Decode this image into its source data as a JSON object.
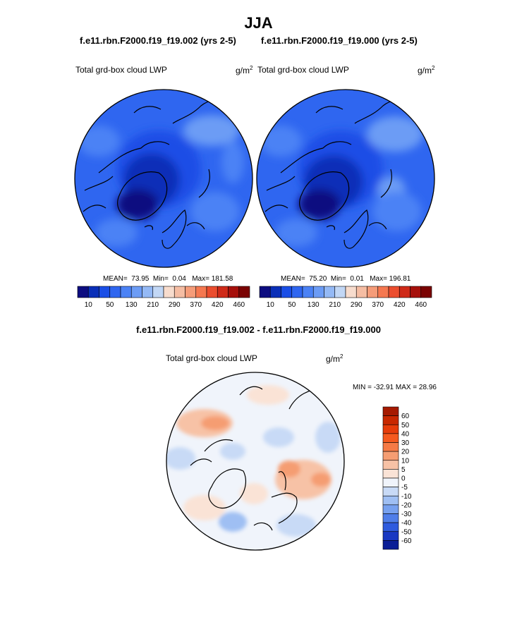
{
  "figure": {
    "title": "JJA",
    "left_case": "f.e11.rbn.F2000.f19_f19.002 (yrs 2-5)",
    "right_case": "f.e11.rbn.F2000.f19_f19.000 (yrs 2-5)",
    "diff_title": "f.e11.rbn.F2000.f19_f19.002 - f.e11.rbn.F2000.f19_f19.000"
  },
  "chart_data": [
    {
      "type": "heatmap",
      "projection": "north-polar-stereographic",
      "variable": "Total grd-box cloud LWP",
      "units_base": "g/m",
      "units_exp": "2",
      "stats": {
        "mean": "73.95",
        "min": "0.04",
        "max": "181.58"
      },
      "colorbar": {
        "colors": [
          "#0d0d80",
          "#0a2fb8",
          "#1a4ee6",
          "#2f66f0",
          "#4b82f5",
          "#6c9cf5",
          "#94b9f5",
          "#c2d7f5",
          "#f7dccd",
          "#f5bda3",
          "#f59c79",
          "#f57850",
          "#eb4d2e",
          "#cf2a18",
          "#a6100b",
          "#7a0303"
        ],
        "tick_labels": [
          "10",
          "50",
          "130",
          "210",
          "290",
          "370",
          "420",
          "460"
        ]
      }
    },
    {
      "type": "heatmap",
      "projection": "north-polar-stereographic",
      "variable": "Total grd-box cloud LWP",
      "units_base": "g/m",
      "units_exp": "2",
      "stats": {
        "mean": "75.20",
        "min": "0.01",
        "max": "196.81"
      },
      "colorbar": {
        "colors": [
          "#0d0d80",
          "#0a2fb8",
          "#1a4ee6",
          "#2f66f0",
          "#4b82f5",
          "#6c9cf5",
          "#94b9f5",
          "#c2d7f5",
          "#f7dccd",
          "#f5bda3",
          "#f59c79",
          "#f57850",
          "#eb4d2e",
          "#cf2a18",
          "#a6100b",
          "#7a0303"
        ],
        "tick_labels": [
          "10",
          "50",
          "130",
          "210",
          "290",
          "370",
          "420",
          "460"
        ]
      }
    },
    {
      "type": "heatmap",
      "projection": "north-polar-stereographic",
      "variable": "Total grd-box cloud LWP",
      "units_base": "g/m",
      "units_exp": "2",
      "minmax_text": "MIN = -32.91 MAX =  28.96",
      "colorbar": {
        "levels": [
          60,
          50,
          40,
          30,
          20,
          10,
          5,
          0,
          -5,
          -10,
          -20,
          -30,
          -40,
          -50,
          -60
        ],
        "colors": [
          "#a61a00",
          "#c82800",
          "#e63c0a",
          "#f5591e",
          "#f57a45",
          "#f59d72",
          "#f7c2a6",
          "#fae3d6",
          "#f0f4fb",
          "#c8daf6",
          "#9fbff3",
          "#77a1ef",
          "#4f7ee9",
          "#2e5bde",
          "#1838c2",
          "#0b1e96"
        ]
      }
    }
  ]
}
